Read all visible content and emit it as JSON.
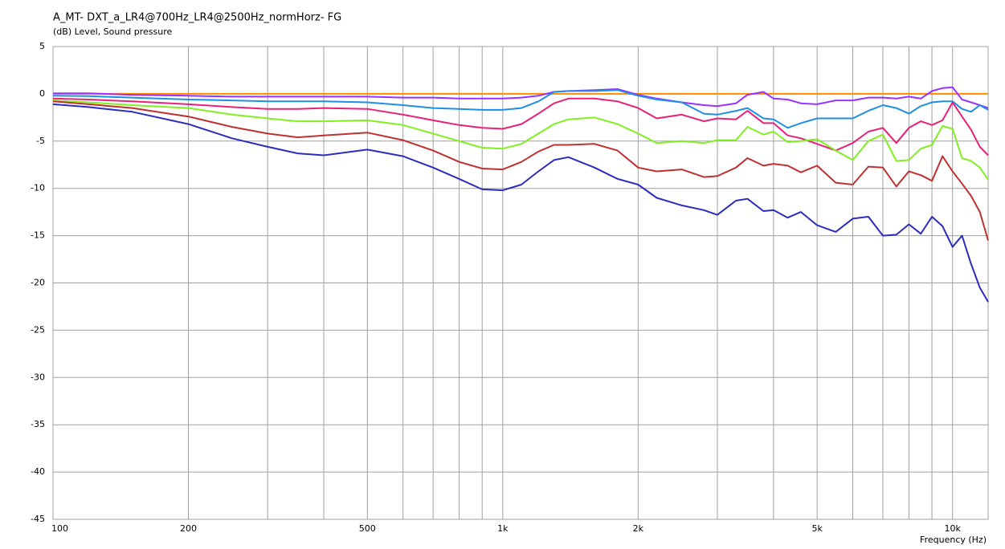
{
  "chart_data": {
    "type": "line",
    "title": "A_MT- DXT_a_LR4@700Hz_LR4@2500Hz_normHorz- FG",
    "y_label": "(dB)  Level, Sound pressure",
    "x_label": "Frequency  (Hz)",
    "x_scale": "log",
    "grid": true,
    "xlim": [
      100,
      12000
    ],
    "ylim": [
      -45,
      5
    ],
    "xticks": [
      100,
      200,
      500,
      {
        "value": 1000,
        "label": "1k"
      },
      {
        "value": 2000,
        "label": "2k"
      },
      {
        "value": 5000,
        "label": "5k"
      },
      {
        "value": 10000,
        "label": "10k"
      }
    ],
    "x_minor_grid": [
      300,
      400,
      600,
      700,
      800,
      900,
      3000,
      4000,
      6000,
      7000,
      8000,
      9000
    ],
    "yticks": [
      5,
      0,
      -5,
      -10,
      -15,
      -20,
      -25,
      -30,
      -35,
      -40,
      -45
    ],
    "x": [
      100,
      120,
      150,
      200,
      250,
      300,
      350,
      400,
      500,
      600,
      700,
      800,
      900,
      1000,
      1100,
      1200,
      1300,
      1400,
      1600,
      1800,
      2000,
      2200,
      2500,
      2800,
      3000,
      3300,
      3500,
      3800,
      4000,
      4300,
      4600,
      5000,
      5500,
      6000,
      6500,
      7000,
      7500,
      8000,
      8500,
      9000,
      9500,
      10000,
      10500,
      11000,
      11500,
      12000
    ],
    "series": [
      {
        "color": "#ff8c00",
        "values": [
          0,
          0,
          0,
          0,
          0,
          0,
          0,
          0,
          0,
          0,
          0,
          0,
          0,
          0,
          0,
          0,
          0,
          0,
          0,
          0,
          0,
          0,
          0,
          0,
          0,
          0,
          0,
          0,
          0,
          0,
          0,
          0,
          0,
          0,
          0,
          0,
          0,
          0,
          0,
          0,
          0,
          0,
          0,
          0,
          0,
          0
        ]
      },
      {
        "color": "#9b30ff",
        "values": [
          0.05,
          0.05,
          -0.1,
          -0.2,
          -0.3,
          -0.3,
          -0.3,
          -0.3,
          -0.3,
          -0.4,
          -0.4,
          -0.5,
          -0.5,
          -0.5,
          -0.4,
          -0.2,
          0.2,
          0.3,
          0.4,
          0.5,
          -0.1,
          -0.5,
          -0.9,
          -1.2,
          -1.3,
          -1.0,
          -0.1,
          0.2,
          -0.5,
          -0.6,
          -1.0,
          -1.1,
          -0.7,
          -0.7,
          -0.4,
          -0.4,
          -0.5,
          -0.3,
          -0.5,
          0.3,
          0.6,
          0.7,
          -0.6,
          -0.9,
          -1.2,
          -1.5
        ]
      },
      {
        "color": "#1e8fe6",
        "values": [
          -0.2,
          -0.25,
          -0.4,
          -0.6,
          -0.7,
          -0.8,
          -0.8,
          -0.8,
          -0.9,
          -1.2,
          -1.5,
          -1.6,
          -1.7,
          -1.7,
          -1.5,
          -0.8,
          0.2,
          0.3,
          0.3,
          0.4,
          -0.2,
          -0.6,
          -0.9,
          -2.1,
          -2.2,
          -1.8,
          -1.5,
          -2.6,
          -2.7,
          -3.6,
          -3.1,
          -2.6,
          -2.6,
          -2.6,
          -1.8,
          -1.2,
          -1.5,
          -2.1,
          -1.3,
          -0.9,
          -0.8,
          -0.8,
          -1.6,
          -1.9,
          -1.2,
          -1.7
        ]
      },
      {
        "color": "#e8207a",
        "values": [
          -0.5,
          -0.6,
          -0.8,
          -1.1,
          -1.4,
          -1.6,
          -1.6,
          -1.5,
          -1.6,
          -2.2,
          -2.8,
          -3.3,
          -3.6,
          -3.7,
          -3.2,
          -2.1,
          -1.0,
          -0.5,
          -0.5,
          -0.8,
          -1.5,
          -2.6,
          -2.2,
          -2.9,
          -2.6,
          -2.7,
          -1.8,
          -3.1,
          -3.1,
          -4.4,
          -4.7,
          -5.3,
          -6.0,
          -5.2,
          -4.0,
          -3.6,
          -5.2,
          -3.6,
          -2.9,
          -3.3,
          -2.8,
          -0.9,
          -2.4,
          -3.8,
          -5.6,
          -6.5
        ]
      },
      {
        "color": "#80f020",
        "values": [
          -0.7,
          -0.9,
          -1.2,
          -1.5,
          -2.2,
          -2.6,
          -2.9,
          -2.9,
          -2.8,
          -3.3,
          -4.2,
          -5.0,
          -5.7,
          -5.8,
          -5.3,
          -4.2,
          -3.2,
          -2.7,
          -2.5,
          -3.2,
          -4.2,
          -5.2,
          -5.0,
          -5.2,
          -4.9,
          -4.9,
          -3.5,
          -4.3,
          -4.0,
          -5.1,
          -5.0,
          -4.8,
          -6.0,
          -7.0,
          -5.0,
          -4.3,
          -7.1,
          -7.0,
          -5.8,
          -5.4,
          -3.4,
          -3.7,
          -6.8,
          -7.1,
          -7.8,
          -9.1
        ]
      },
      {
        "color": "#c03030",
        "values": [
          -0.8,
          -1.1,
          -1.5,
          -2.4,
          -3.5,
          -4.2,
          -4.6,
          -4.4,
          -4.1,
          -4.9,
          -6.0,
          -7.2,
          -7.9,
          -8.0,
          -7.2,
          -6.1,
          -5.4,
          -5.4,
          -5.3,
          -6.0,
          -7.8,
          -8.2,
          -8.0,
          -8.8,
          -8.7,
          -7.8,
          -6.8,
          -7.6,
          -7.4,
          -7.6,
          -8.3,
          -7.6,
          -9.4,
          -9.6,
          -7.7,
          -7.8,
          -9.8,
          -8.2,
          -8.6,
          -9.2,
          -6.6,
          -8.2,
          -9.5,
          -10.8,
          -12.5,
          -15.5
        ]
      },
      {
        "color": "#2c2cc0",
        "values": [
          -1.1,
          -1.4,
          -1.9,
          -3.2,
          -4.7,
          -5.6,
          -6.3,
          -6.5,
          -5.9,
          -6.6,
          -7.8,
          -9.0,
          -10.1,
          -10.2,
          -9.6,
          -8.2,
          -7.0,
          -6.7,
          -7.8,
          -9.0,
          -9.6,
          -11.0,
          -11.8,
          -12.3,
          -12.8,
          -11.3,
          -11.1,
          -12.4,
          -12.3,
          -13.1,
          -12.5,
          -13.9,
          -14.6,
          -13.2,
          -13.0,
          -15.0,
          -14.9,
          -13.8,
          -14.8,
          -13.0,
          -14.0,
          -16.2,
          -15.0,
          -18.0,
          -20.5,
          -22.0
        ]
      }
    ]
  }
}
